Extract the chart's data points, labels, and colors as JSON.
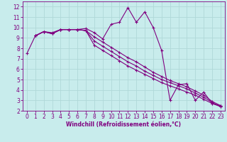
{
  "xlabel": "Windchill (Refroidissement éolien,°C)",
  "bg_color": "#c8ecec",
  "grid_color": "#b0d8d8",
  "line_color": "#800080",
  "spine_color": "#800080",
  "xlim": [
    -0.5,
    23.5
  ],
  "ylim": [
    2,
    12.5
  ],
  "xticks": [
    0,
    1,
    2,
    3,
    4,
    5,
    6,
    7,
    8,
    9,
    10,
    11,
    12,
    13,
    14,
    15,
    16,
    17,
    18,
    19,
    20,
    21,
    22,
    23
  ],
  "yticks": [
    2,
    3,
    4,
    5,
    6,
    7,
    8,
    9,
    10,
    11,
    12
  ],
  "tick_fontsize": 5.5,
  "xlabel_fontsize": 5.5,
  "curves": [
    {
      "x": [
        0,
        1,
        2,
        3,
        4,
        5,
        6,
        7,
        8,
        9,
        10,
        11,
        12,
        13,
        14,
        15,
        16,
        17,
        18,
        19,
        20,
        21,
        22,
        23
      ],
      "y": [
        7.5,
        9.2,
        9.6,
        9.5,
        9.8,
        9.8,
        9.8,
        9.9,
        9.5,
        8.9,
        10.3,
        10.5,
        11.9,
        10.5,
        11.5,
        10.0,
        7.8,
        3.0,
        4.5,
        4.6,
        3.0,
        3.8,
        2.7,
        2.5
      ]
    },
    {
      "x": [
        1,
        2,
        3,
        4,
        5,
        6,
        7,
        8,
        9,
        10,
        11,
        12,
        13,
        14,
        15,
        16,
        17,
        18,
        19,
        20,
        21,
        22,
        23
      ],
      "y": [
        9.2,
        9.6,
        9.4,
        9.8,
        9.8,
        9.8,
        9.7,
        8.3,
        7.8,
        7.3,
        6.8,
        6.3,
        5.9,
        5.5,
        5.1,
        4.7,
        4.4,
        4.1,
        3.8,
        3.5,
        3.1,
        2.7,
        2.4
      ]
    },
    {
      "x": [
        1,
        2,
        3,
        4,
        5,
        6,
        7,
        8,
        9,
        10,
        11,
        12,
        13,
        14,
        15,
        16,
        17,
        18,
        19,
        20,
        21,
        22,
        23
      ],
      "y": [
        9.2,
        9.6,
        9.4,
        9.8,
        9.8,
        9.8,
        9.7,
        8.7,
        8.2,
        7.7,
        7.2,
        6.7,
        6.3,
        5.8,
        5.4,
        5.0,
        4.7,
        4.4,
        4.1,
        3.7,
        3.3,
        2.8,
        2.4
      ]
    },
    {
      "x": [
        1,
        2,
        3,
        4,
        5,
        6,
        7,
        8,
        9,
        10,
        11,
        12,
        13,
        14,
        15,
        16,
        17,
        18,
        19,
        20,
        21,
        22,
        23
      ],
      "y": [
        9.2,
        9.6,
        9.4,
        9.8,
        9.8,
        9.8,
        9.7,
        9.1,
        8.6,
        8.1,
        7.6,
        7.1,
        6.7,
        6.2,
        5.7,
        5.3,
        4.9,
        4.6,
        4.3,
        3.9,
        3.5,
        2.9,
        2.5
      ]
    }
  ]
}
